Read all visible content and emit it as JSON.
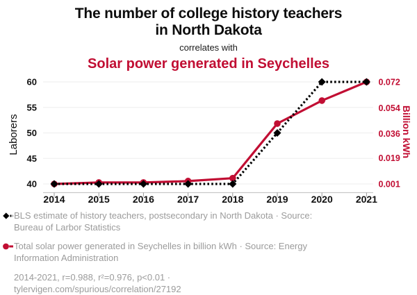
{
  "header": {
    "title": "The number of college history teachers in North Dakota",
    "connector": "correlates with",
    "subtitle": "Solar power generated in Seychelles"
  },
  "chart_data": {
    "type": "line",
    "x": [
      2014,
      2015,
      2016,
      2017,
      2018,
      2019,
      2020,
      2021
    ],
    "series": [
      {
        "key": "teachers",
        "name": "BLS estimate of history teachers, postsecondary in North Dakota",
        "axis": "left",
        "color": "#000000",
        "style": "dashed",
        "marker": "diamond",
        "values": [
          40,
          40,
          40,
          40,
          40,
          50,
          60,
          60
        ]
      },
      {
        "key": "solar",
        "name": "Total solar power generated in Seychelles in billion kWh",
        "axis": "right",
        "color": "#c10e33",
        "style": "solid",
        "marker": "circle",
        "values": [
          0.001,
          0.002,
          0.002,
          0.003,
          0.005,
          0.043,
          0.059,
          0.072
        ]
      }
    ],
    "left_axis": {
      "label": "Laborers",
      "ticks": [
        40,
        45,
        50,
        55,
        60
      ],
      "range": [
        40,
        60
      ]
    },
    "right_axis": {
      "label": "Billion kWh",
      "ticks": [
        "0.001",
        "0.019",
        "0.036",
        "0.054",
        "0.072"
      ],
      "range": [
        0.001,
        0.072
      ]
    },
    "grid": true,
    "legend_position": "bottom"
  },
  "legend": {
    "items": [
      {
        "marker": "black-diamond-dashed-line",
        "text": "BLS estimate of history teachers, postsecondary in North Dakota · Source: Bureau of Larbor Statistics"
      },
      {
        "marker": "red-circle-solid-line",
        "text": "Total solar power generated in Seychelles in billion kWh · Source: Energy Information Administration"
      }
    ],
    "footnote": "2014-2021, r=0.988, r²=0.976, p<0.01 · tylervigen.com/spurious/correlation/27192"
  },
  "colors": {
    "accent_red": "#c10e33",
    "legend_text": "#9b9b9b",
    "grid_line": "#ededed",
    "axis_line": "#c8c8c8",
    "text_black": "#0d0d0d"
  }
}
